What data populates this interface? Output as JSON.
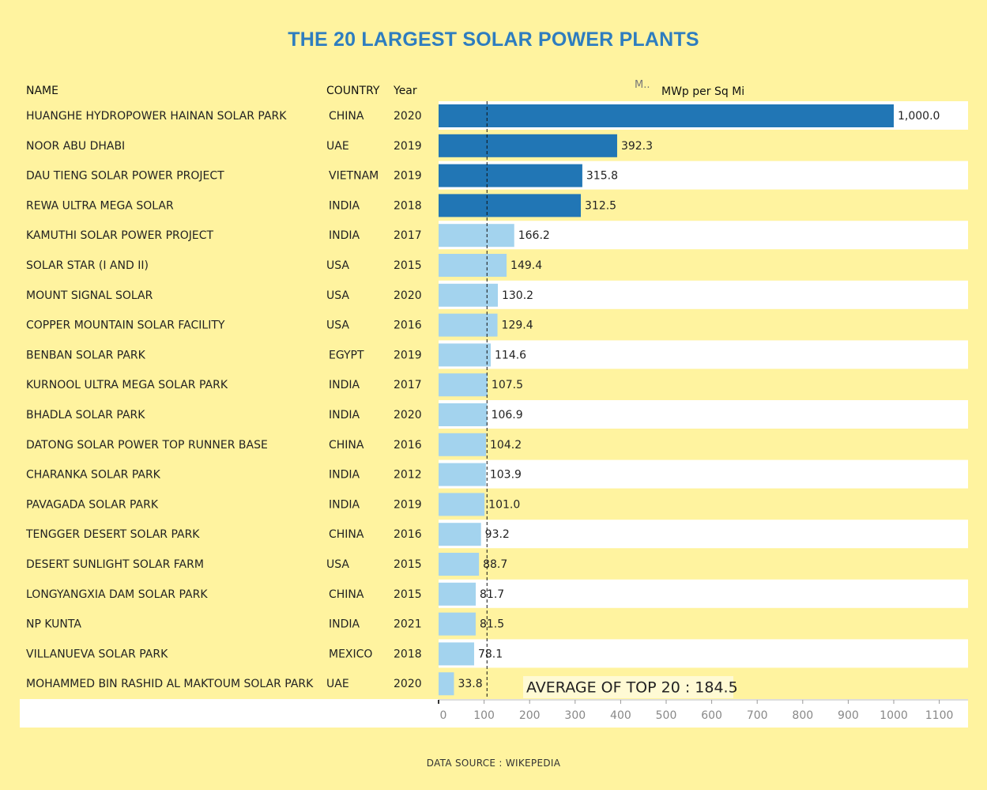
{
  "title": "THE 20 LARGEST SOLAR POWER PLANTS",
  "headers": {
    "name": "NAME",
    "country": "COUNTRY",
    "year": "Year",
    "measure_short": "M..",
    "measure": "MWp per Sq Mi"
  },
  "source": "DATA SOURCE : WIKEPEDIA",
  "colors": {
    "background": "#fff39f",
    "band": "#fff39f",
    "row_alt": "#ffffff",
    "bar_top": "#2176b5",
    "bar_rest": "#a3d3ee",
    "title": "#2e7dbf"
  },
  "chart_data": {
    "type": "bar",
    "orientation": "horizontal",
    "title": "THE 20 LARGEST SOLAR POWER PLANTS",
    "xlabel": "MWp per Sq Mi",
    "xlim": [
      0,
      1100
    ],
    "xticks": [
      0,
      100,
      200,
      300,
      400,
      500,
      600,
      700,
      800,
      900,
      1000,
      1100
    ],
    "reference_line": {
      "value": 184.5,
      "label": "AVERAGE OF TOP 20 : 184.5"
    },
    "highlight_count": 4,
    "rows": [
      {
        "name": "HUANGHE HYDROPOWER HAINAN SOLAR PARK",
        "country": "CHINA",
        "year": "2020",
        "value": 1000.0,
        "label": "1,000.0"
      },
      {
        "name": "NOOR ABU DHABI",
        "country": "UAE",
        "year": "2019",
        "value": 392.3,
        "label": "392.3"
      },
      {
        "name": "DAU TIENG SOLAR POWER PROJECT",
        "country": "VIETNAM",
        "year": "2019",
        "value": 315.8,
        "label": "315.8"
      },
      {
        "name": "REWA ULTRA MEGA SOLAR",
        "country": "INDIA",
        "year": "2018",
        "value": 312.5,
        "label": "312.5"
      },
      {
        "name": "KAMUTHI SOLAR POWER PROJECT",
        "country": "INDIA",
        "year": "2017",
        "value": 166.2,
        "label": "166.2"
      },
      {
        "name": "SOLAR STAR (I AND II)",
        "country": "USA",
        "year": "2015",
        "value": 149.4,
        "label": "149.4"
      },
      {
        "name": "MOUNT SIGNAL SOLAR",
        "country": "USA",
        "year": "2020",
        "value": 130.2,
        "label": "130.2"
      },
      {
        "name": "COPPER MOUNTAIN SOLAR FACILITY",
        "country": "USA",
        "year": "2016",
        "value": 129.4,
        "label": "129.4"
      },
      {
        "name": "BENBAN SOLAR PARK",
        "country": "EGYPT",
        "year": "2019",
        "value": 114.6,
        "label": "114.6"
      },
      {
        "name": "KURNOOL ULTRA MEGA SOLAR PARK",
        "country": "INDIA",
        "year": "2017",
        "value": 107.5,
        "label": "107.5"
      },
      {
        "name": "BHADLA SOLAR PARK",
        "country": "INDIA",
        "year": "2020",
        "value": 106.9,
        "label": "106.9"
      },
      {
        "name": "DATONG SOLAR POWER TOP RUNNER BASE",
        "country": "CHINA",
        "year": "2016",
        "value": 104.2,
        "label": "104.2"
      },
      {
        "name": "CHARANKA SOLAR PARK",
        "country": "INDIA",
        "year": "2012",
        "value": 103.9,
        "label": "103.9"
      },
      {
        "name": "PAVAGADA SOLAR PARK",
        "country": "INDIA",
        "year": "2019",
        "value": 101.0,
        "label": "101.0"
      },
      {
        "name": "TENGGER DESERT SOLAR PARK",
        "country": "CHINA",
        "year": "2016",
        "value": 93.2,
        "label": "93.2"
      },
      {
        "name": "DESERT SUNLIGHT SOLAR FARM",
        "country": "USA",
        "year": "2015",
        "value": 88.7,
        "label": "88.7"
      },
      {
        "name": "LONGYANGXIA DAM SOLAR PARK",
        "country": "CHINA",
        "year": "2015",
        "value": 81.7,
        "label": "81.7"
      },
      {
        "name": "NP KUNTA",
        "country": "INDIA",
        "year": "2021",
        "value": 81.5,
        "label": "81.5"
      },
      {
        "name": "VILLANUEVA SOLAR PARK",
        "country": "MEXICO",
        "year": "2018",
        "value": 78.1,
        "label": "78.1"
      },
      {
        "name": "MOHAMMED BIN RASHID AL MAKTOUM SOLAR PARK",
        "country": "UAE",
        "year": "2020",
        "value": 33.8,
        "label": "33.8"
      }
    ]
  }
}
